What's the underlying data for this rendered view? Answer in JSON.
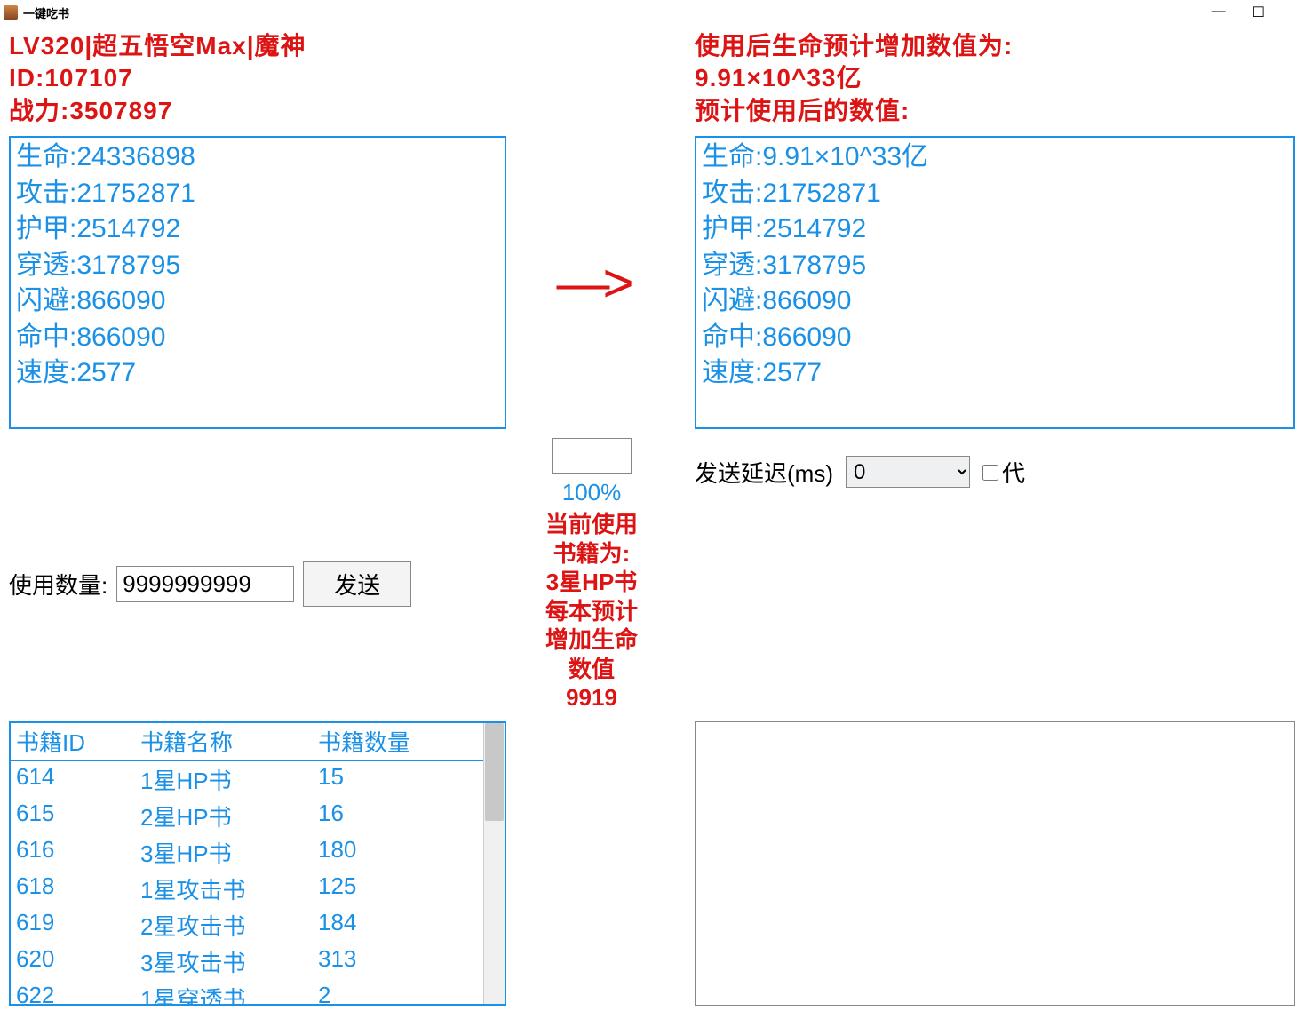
{
  "window": {
    "title": "一键吃书"
  },
  "header_left": {
    "line1": "LV320|超五悟空Max|魔神",
    "line2": "ID:107107",
    "line3": "战力:3507897"
  },
  "header_right": {
    "line1": "使用后生命预计增加数值为:",
    "line2": "9.91×10^33亿",
    "line3": "预计使用后的数值:"
  },
  "stats_left": {
    "hp": "生命:24336898",
    "atk": "攻击:21752871",
    "def": "护甲:2514792",
    "pen": "穿透:3178795",
    "dodge": "闪避:866090",
    "hit": "命中:866090",
    "spd": "速度:2577"
  },
  "stats_right": {
    "hp": "生命:9.91×10^33亿",
    "atk": "攻击:21752871",
    "def": "护甲:2514792",
    "pen": "穿透:3178795",
    "dodge": "闪避:866090",
    "hit": "命中:866090",
    "spd": "速度:2577"
  },
  "arrow": "—>",
  "controls": {
    "qty_label": "使用数量:",
    "qty_value": "9999999999",
    "send_label": "发送"
  },
  "progress": {
    "percent": "100%"
  },
  "current_book": {
    "l1": "当前使用",
    "l2": "书籍为:",
    "l3": "3星HP书",
    "l4": "每本预计",
    "l5": "增加生命",
    "l6": "数值",
    "l7": "9919"
  },
  "right_controls": {
    "delay_label": "发送延迟(ms)",
    "delay_value": "0",
    "proxy_label": "代"
  },
  "table": {
    "head_id": "书籍ID",
    "head_name": "书籍名称",
    "head_qty": "书籍数量",
    "rows": [
      {
        "id": "614",
        "name": "1星HP书",
        "qty": "15"
      },
      {
        "id": "615",
        "name": "2星HP书",
        "qty": "16"
      },
      {
        "id": "616",
        "name": "3星HP书",
        "qty": "180"
      },
      {
        "id": "618",
        "name": "1星攻击书",
        "qty": "125"
      },
      {
        "id": "619",
        "name": "2星攻击书",
        "qty": "184"
      },
      {
        "id": "620",
        "name": "3星攻击书",
        "qty": "313"
      },
      {
        "id": "622",
        "name": "1星穿透书",
        "qty": "2"
      }
    ]
  },
  "colors": {
    "red": "#dc1414",
    "blue": "#1a91e6"
  }
}
